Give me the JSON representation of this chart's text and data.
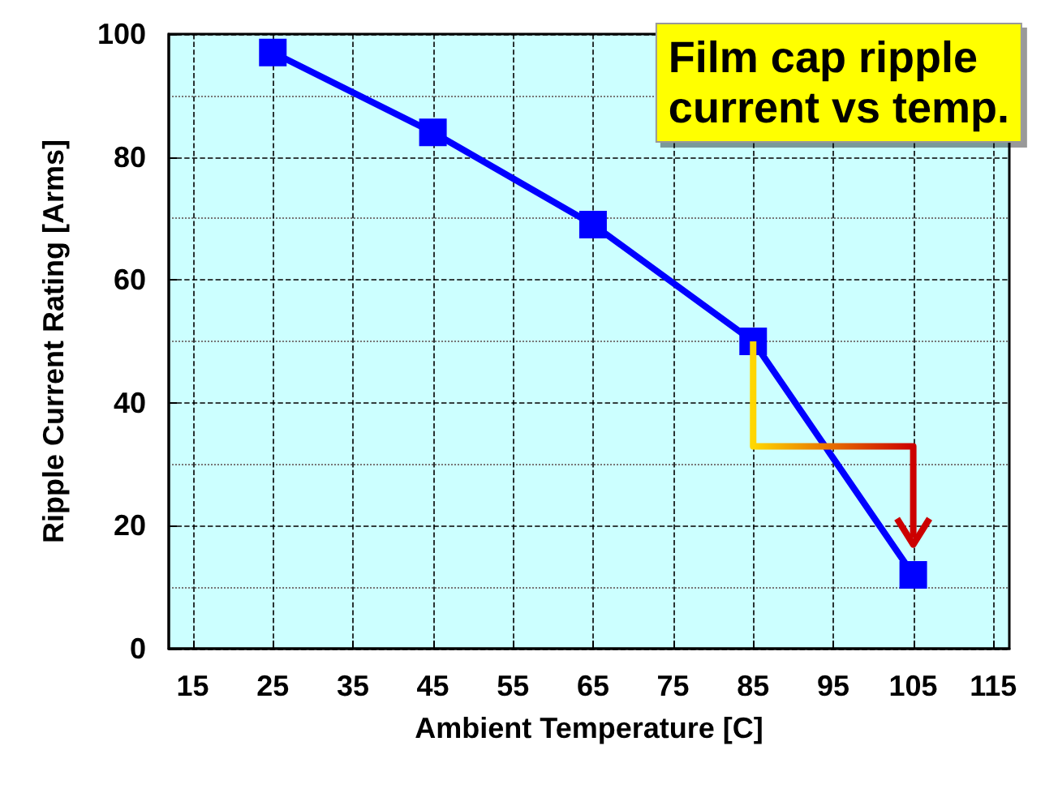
{
  "chart_data": {
    "type": "line",
    "title": "Film cap ripple\ncurrent vs temp.",
    "xlabel": "Ambient Temperature [C]",
    "ylabel": "Ripple Current Rating [Arms]",
    "x": [
      25,
      45,
      65,
      85,
      105
    ],
    "series": [
      {
        "color": "#0000ff",
        "values": [
          97,
          84,
          69,
          50,
          12
        ]
      }
    ],
    "xlim": [
      12,
      117
    ],
    "xticks": [
      15,
      25,
      35,
      45,
      55,
      65,
      75,
      85,
      95,
      105,
      115
    ],
    "ylim": [
      0,
      100
    ],
    "yticks": [
      0,
      20,
      40,
      60,
      80,
      100
    ],
    "grid": true,
    "marker": "square",
    "line_style": "solid"
  }
}
